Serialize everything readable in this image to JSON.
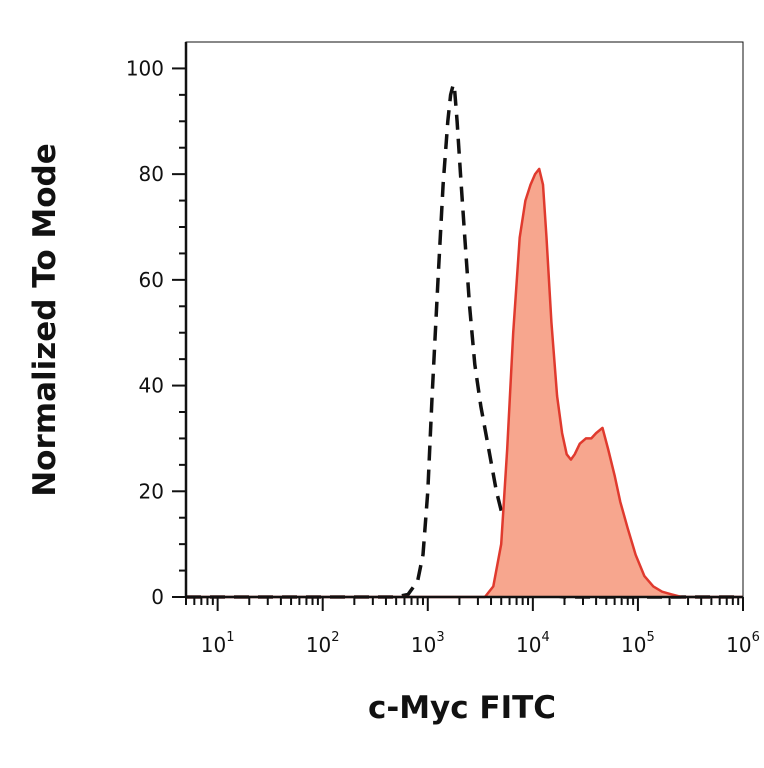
{
  "chart_data": {
    "type": "area",
    "title": "",
    "xlabel": "c-Myc FITC",
    "ylabel": "Normalized To Mode",
    "x_scale": "log",
    "xlim": [
      5,
      1000000
    ],
    "ylim": [
      0,
      105
    ],
    "x_ticks": [
      {
        "base": "10",
        "exp": "1",
        "value": 10
      },
      {
        "base": "10",
        "exp": "2",
        "value": 100
      },
      {
        "base": "10",
        "exp": "3",
        "value": 1000
      },
      {
        "base": "10",
        "exp": "4",
        "value": 10000
      },
      {
        "base": "10",
        "exp": "5",
        "value": 100000
      },
      {
        "base": "10",
        "exp": "6",
        "value": 1000000
      }
    ],
    "y_ticks": [
      {
        "label": "0",
        "value": 0
      },
      {
        "label": "20",
        "value": 20
      },
      {
        "label": "40",
        "value": 40
      },
      {
        "label": "60",
        "value": 60
      },
      {
        "label": "80",
        "value": 80
      },
      {
        "label": "100",
        "value": 100
      }
    ],
    "grid": false,
    "legend": "none",
    "series": [
      {
        "style": "dashed",
        "color": "#111111",
        "filled": false,
        "x": [
          5,
          500,
          650,
          800,
          900,
          1000,
          1100,
          1250,
          1400,
          1550,
          1650,
          1750,
          1800,
          1900,
          2050,
          2250,
          2500,
          2800,
          3200,
          3800,
          4500,
          5500,
          6500,
          8000,
          10000,
          13000,
          20000,
          1000000
        ],
        "y": [
          0,
          0,
          0.5,
          3,
          8,
          20,
          38,
          60,
          78,
          90,
          95,
          97,
          96,
          90,
          80,
          68,
          55,
          44,
          36,
          28,
          20,
          13,
          8,
          4,
          1.5,
          0.5,
          0,
          0
        ]
      },
      {
        "style": "solid",
        "color": "#e03a2e",
        "fill": "#f7a68e",
        "filled": true,
        "x": [
          5,
          3500,
          4200,
          5000,
          5700,
          6500,
          7500,
          8500,
          9500,
          10500,
          11500,
          12500,
          13500,
          15000,
          17000,
          19000,
          21000,
          23000,
          25000,
          28000,
          32000,
          36000,
          40000,
          46000,
          52000,
          60000,
          68000,
          80000,
          95000,
          115000,
          140000,
          170000,
          210000,
          260000,
          320000,
          1000000
        ],
        "y": [
          0,
          0,
          2,
          10,
          28,
          50,
          68,
          75,
          78,
          80,
          81,
          78,
          68,
          52,
          38,
          31,
          27,
          26,
          27,
          29,
          30,
          30,
          31,
          32,
          28,
          23,
          18,
          13,
          8,
          4,
          2,
          1,
          0.5,
          0,
          0,
          0
        ]
      }
    ]
  }
}
